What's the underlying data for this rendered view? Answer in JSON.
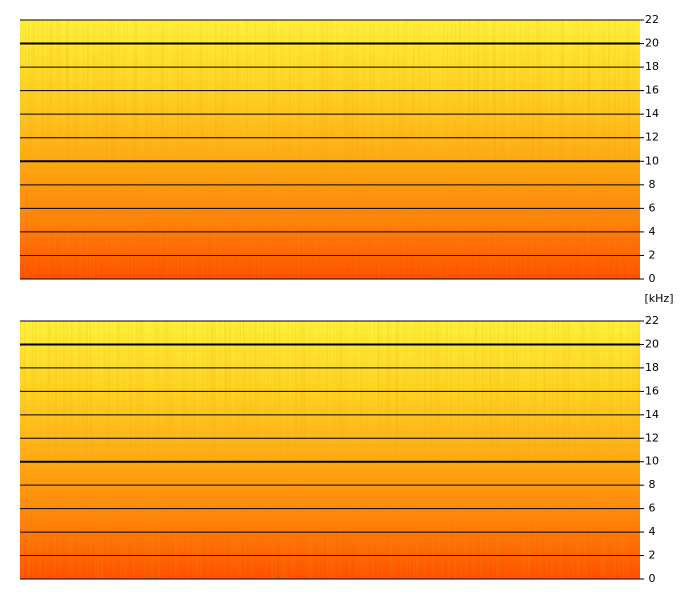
{
  "chart_data": [
    {
      "type": "spectrogram",
      "ylim": [
        0,
        22
      ],
      "yticks": [
        0,
        2,
        4,
        6,
        8,
        10,
        12,
        14,
        16,
        18,
        20,
        22
      ],
      "major_gridlines": [
        10,
        20
      ],
      "grid": true
    },
    {
      "type": "spectrogram",
      "y_label": "[kHz]",
      "ylim": [
        0,
        22
      ],
      "yticks": [
        0,
        2,
        4,
        6,
        8,
        10,
        12,
        14,
        16,
        18,
        20,
        22
      ],
      "major_gridlines": [
        10,
        20
      ],
      "grid": true
    }
  ]
}
